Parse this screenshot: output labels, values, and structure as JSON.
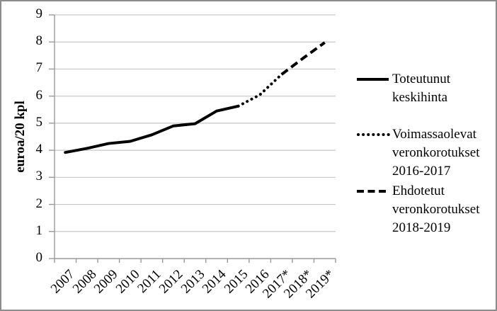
{
  "figure_title": "",
  "y_axis": {
    "title": "euroa/20 kpl"
  },
  "chart_data": {
    "type": "line",
    "title": "",
    "xlabel": "",
    "ylabel": "euroa/20 kpl",
    "ylim": [
      0,
      9
    ],
    "y_ticks": [
      0,
      1,
      2,
      3,
      4,
      5,
      6,
      7,
      8,
      9
    ],
    "grid": "horizontal",
    "legend_position": "right",
    "categories": [
      "2007",
      "2008",
      "2009",
      "2010",
      "2011",
      "2012",
      "2013",
      "2014",
      "2015",
      "2016",
      "2017*",
      "2018*",
      "2019*"
    ],
    "values": [
      3.92,
      4.07,
      4.25,
      4.33,
      4.57,
      4.9,
      4.98,
      5.45,
      5.63,
      6.05,
      6.8,
      7.4,
      7.98
    ],
    "segments": [
      {
        "name": "Toteutunut keskihinta",
        "style": "solid",
        "from": 0,
        "to": 8
      },
      {
        "name": "Voimassaolevat veronkorotukset 2016-2017",
        "style": "dotted",
        "from": 8,
        "to": 10
      },
      {
        "name": "Ehdotetut veronkorotukset 2018-2019",
        "style": "dashed",
        "from": 10,
        "to": 12
      }
    ],
    "colors": {
      "line": "#000000",
      "gridline": "#c6c6c6",
      "axis": "#9a9a9a",
      "border": "#8c8c8c"
    }
  }
}
